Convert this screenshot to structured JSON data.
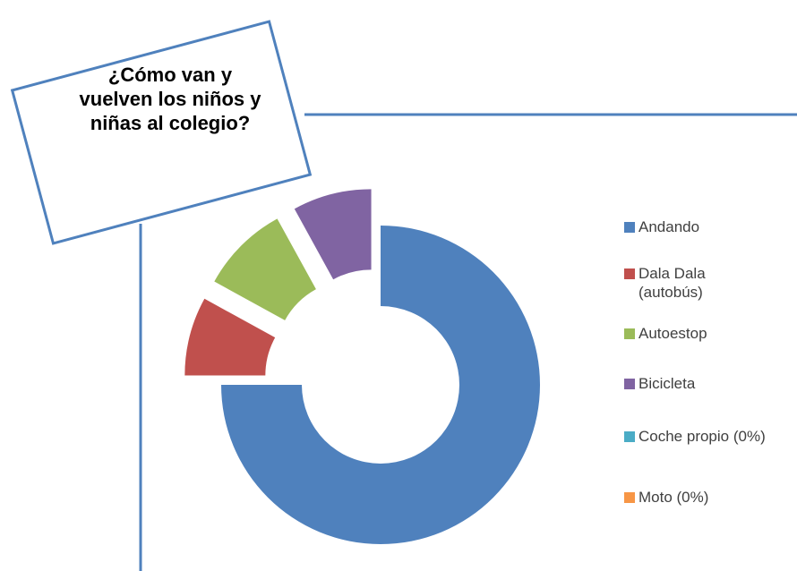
{
  "chart_data": {
    "type": "donut",
    "title": "¿Cómo van y vuelven los niños y niñas al colegio?",
    "categories": [
      "Andando",
      "Dala Dala (autobús)",
      "Autoestop",
      "Bicicleta",
      "Coche propio (0%)",
      "Moto (0%)"
    ],
    "values": [
      75,
      8,
      9,
      8,
      0,
      0
    ],
    "colors": [
      "#4f81bd",
      "#c0504d",
      "#9bbb59",
      "#8064a2",
      "#4bacc6",
      "#f79646"
    ],
    "legend": "right"
  }
}
